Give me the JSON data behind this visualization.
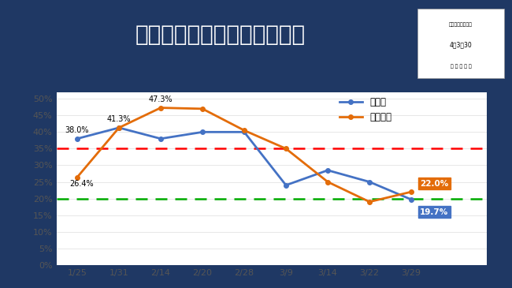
{
  "title": "コロナ病床の実質病床利用率",
  "x_labels": [
    "1/25",
    "1/31",
    "2/14",
    "2/20",
    "2/28",
    "3/9",
    "3/14",
    "3/22",
    "3/29"
  ],
  "nagano": [
    38.0,
    41.3,
    38.0,
    40.0,
    40.0,
    24.0,
    28.5,
    25.0,
    19.7
  ],
  "matsumoto": [
    26.4,
    41.3,
    47.3,
    47.0,
    40.5,
    35.0,
    25.0,
    19.0,
    22.0
  ],
  "nagano_color": "#4472C4",
  "matsumoto_color": "#E36C09",
  "red_line_y": 35.0,
  "green_line_y": 20.0,
  "title_bg_color": "#1F3864",
  "title_text_color": "#FFFFFF",
  "bg_color": "#FFFFFF",
  "legend_nagano": "長野県",
  "legend_matsumoto": "松本圈域",
  "nagano_label": "19.7%",
  "matsumoto_label": "22.0%",
  "annotation_38": "38.0%",
  "annotation_264": "26.4%",
  "annotation_413": "41.3%",
  "annotation_473": "47.3%",
  "info_line1": "市民記者会見資料",
  "info_line2": "4．3．30",
  "info_line3": "保 健 予 防 課",
  "ylim": [
    0,
    52
  ],
  "yticks": [
    0,
    5,
    10,
    15,
    20,
    25,
    30,
    35,
    40,
    45,
    50
  ]
}
